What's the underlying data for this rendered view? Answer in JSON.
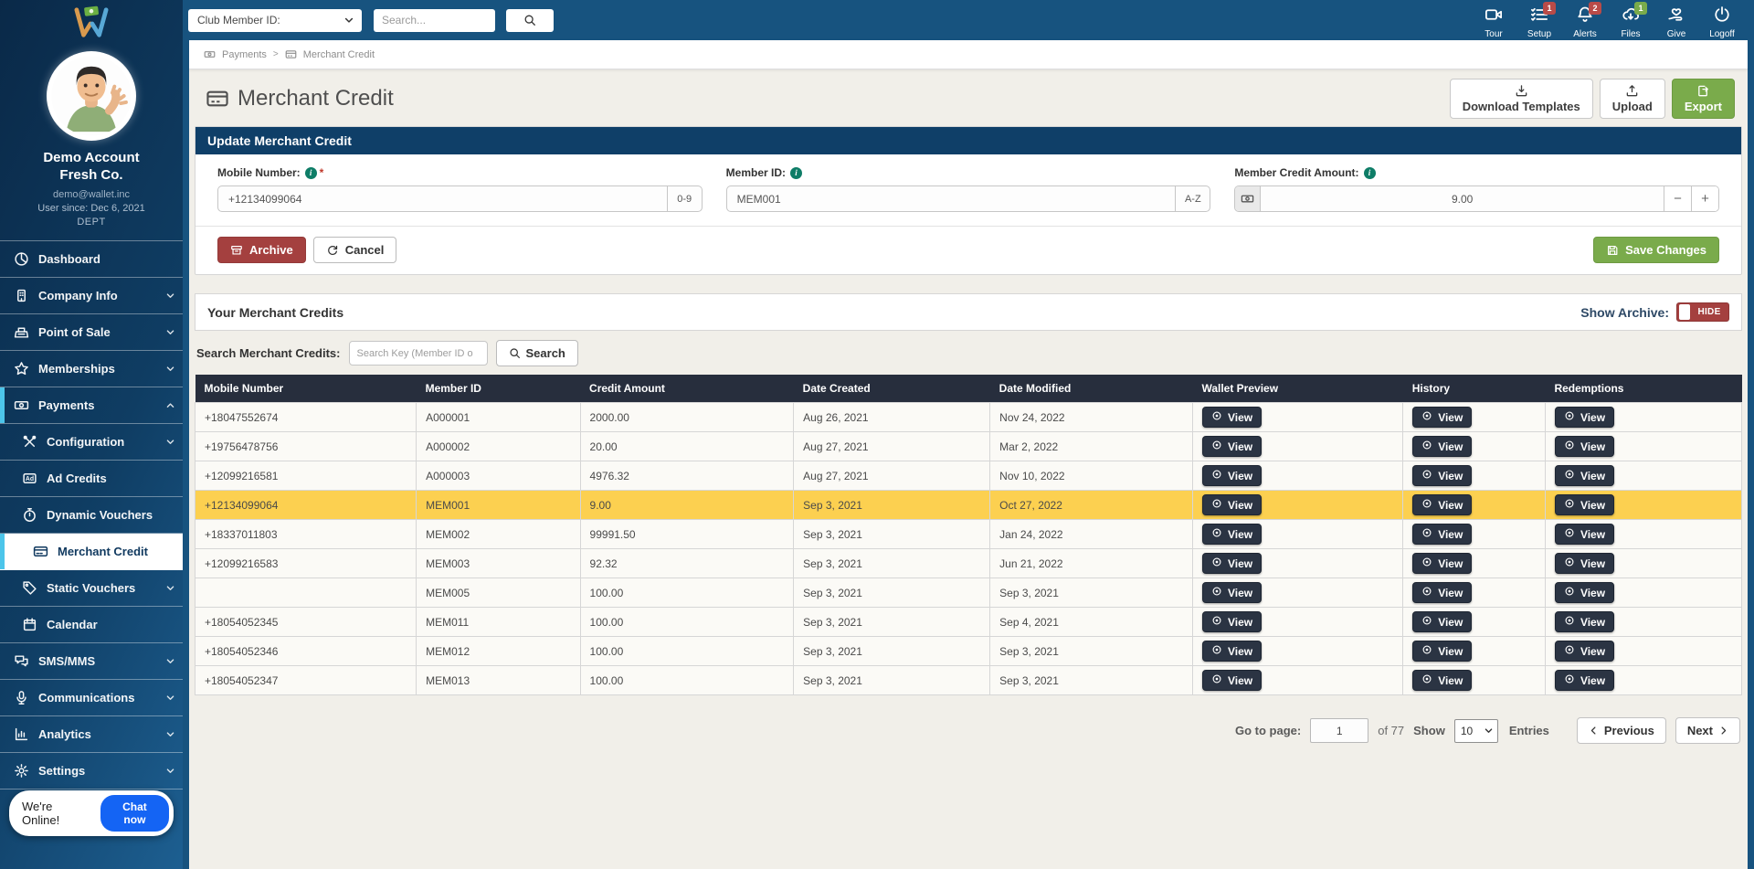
{
  "colors": {
    "topbar_blue": "#17537f",
    "panel_header_navy": "#0f3f68",
    "table_header_charcoal": "#272e3d",
    "highlight_yellow": "#fcd050",
    "accent_green": "#7aab4b",
    "danger_red": "#a4403f",
    "badge_red": "#b94b48",
    "badge_green": "#7aab4b",
    "active_cyan": "#4cc5ea",
    "chat_blue": "#1464f4"
  },
  "topbar": {
    "filter_label": "Club Member ID:",
    "search_placeholder": "Search...",
    "icons": [
      {
        "name": "tour",
        "label": "Tour"
      },
      {
        "name": "setup",
        "label": "Setup",
        "badge": "1",
        "badge_color": "#b94b48"
      },
      {
        "name": "alerts",
        "label": "Alerts",
        "badge": "2",
        "badge_color": "#b94b48"
      },
      {
        "name": "files",
        "label": "Files",
        "badge": "1",
        "badge_color": "#7aab4b"
      },
      {
        "name": "give",
        "label": "Give"
      },
      {
        "name": "logoff",
        "label": "Logoff"
      }
    ]
  },
  "sidebar": {
    "account_name": "Demo Account",
    "company_name": "Fresh Co.",
    "email": "demo@wallet.inc",
    "user_since": "User since: Dec 6, 2021",
    "dept": "DEPT",
    "menu": [
      {
        "label": "Dashboard",
        "icon": "dashboard"
      },
      {
        "label": "Company Info",
        "icon": "company",
        "chevron": "down"
      },
      {
        "label": "Point of Sale",
        "icon": "pos",
        "chevron": "down"
      },
      {
        "label": "Memberships",
        "icon": "star",
        "chevron": "down"
      },
      {
        "label": "Payments",
        "icon": "payments",
        "chevron": "up",
        "expanded": true
      },
      {
        "label": "Configuration",
        "icon": "tools",
        "chevron": "down",
        "sub": true
      },
      {
        "label": "Ad Credits",
        "icon": "ad",
        "sub": true
      },
      {
        "label": "Dynamic Vouchers",
        "icon": "stopwatch",
        "sub": true
      },
      {
        "label": "Merchant Credit",
        "icon": "card",
        "sub": true,
        "active": true
      },
      {
        "label": "Static Vouchers",
        "icon": "tag",
        "chevron": "down",
        "sub": true
      },
      {
        "label": "Calendar",
        "icon": "calendar",
        "sub": true
      },
      {
        "label": "SMS/MMS",
        "icon": "sms",
        "chevron": "down"
      },
      {
        "label": "Communications",
        "icon": "mic",
        "chevron": "down"
      },
      {
        "label": "Analytics",
        "icon": "analytics",
        "chevron": "down"
      },
      {
        "label": "Settings",
        "icon": "gear",
        "chevron": "down"
      }
    ],
    "chat": {
      "status": "We're Online!",
      "button": "Chat now"
    }
  },
  "breadcrumb": {
    "items": [
      "Payments",
      "Merchant Credit"
    ],
    "separator": ">"
  },
  "page": {
    "title": "Merchant Credit",
    "actions": {
      "download_templates": "Download Templates",
      "upload": "Upload",
      "export": "Export"
    }
  },
  "update_panel": {
    "title": "Update Merchant Credit",
    "fields": {
      "mobile": {
        "label": "Mobile Number:",
        "required": "*",
        "value": "+12134099064",
        "suffix": "0-9"
      },
      "member": {
        "label": "Member ID:",
        "value": "MEM001",
        "suffix": "A-Z"
      },
      "amount": {
        "label": "Member Credit Amount:",
        "value": "9.00",
        "minus": "−",
        "plus": "+"
      }
    },
    "buttons": {
      "archive": "Archive",
      "cancel": "Cancel",
      "save": "Save Changes"
    }
  },
  "credits_panel": {
    "title": "Your Merchant Credits",
    "show_archive_label": "Show Archive:",
    "toggle_label": "HIDE",
    "search_label": "Search Merchant Credits:",
    "search_placeholder": "Search Key (Member ID o",
    "search_button": "Search",
    "table": {
      "columns": [
        "Mobile Number",
        "Member ID",
        "Credit Amount",
        "Date Created",
        "Date Modified",
        "Wallet Preview",
        "History",
        "Redemptions"
      ],
      "view_label": "View",
      "rows": [
        {
          "mobile": "+18047552674",
          "member_id": "A000001",
          "amount": "2000.00",
          "created": "Aug 26, 2021",
          "modified": "Nov 24, 2022"
        },
        {
          "mobile": "+19756478756",
          "member_id": "A000002",
          "amount": "20.00",
          "created": "Aug 27, 2021",
          "modified": "Mar 2, 2022"
        },
        {
          "mobile": "+12099216581",
          "member_id": "A000003",
          "amount": "4976.32",
          "created": "Aug 27, 2021",
          "modified": "Nov 10, 2022"
        },
        {
          "mobile": "+12134099064",
          "member_id": "MEM001",
          "amount": "9.00",
          "created": "Sep 3, 2021",
          "modified": "Oct 27, 2022",
          "highlighted": true
        },
        {
          "mobile": "+18337011803",
          "member_id": "MEM002",
          "amount": "99991.50",
          "created": "Sep 3, 2021",
          "modified": "Jan 24, 2022"
        },
        {
          "mobile": "+12099216583",
          "member_id": "MEM003",
          "amount": "92.32",
          "created": "Sep 3, 2021",
          "modified": "Jun 21, 2022"
        },
        {
          "mobile": "",
          "member_id": "MEM005",
          "amount": "100.00",
          "created": "Sep 3, 2021",
          "modified": "Sep 3, 2021"
        },
        {
          "mobile": "+18054052345",
          "member_id": "MEM011",
          "amount": "100.00",
          "created": "Sep 3, 2021",
          "modified": "Sep 4, 2021"
        },
        {
          "mobile": "+18054052346",
          "member_id": "MEM012",
          "amount": "100.00",
          "created": "Sep 3, 2021",
          "modified": "Sep 3, 2021"
        },
        {
          "mobile": "+18054052347",
          "member_id": "MEM013",
          "amount": "100.00",
          "created": "Sep 3, 2021",
          "modified": "Sep 3, 2021"
        }
      ]
    }
  },
  "pagination": {
    "go_to_page_label": "Go to page:",
    "page_value": "1",
    "of_label": "of 77",
    "show_label": "Show",
    "page_size": "10",
    "entries_label": "Entries",
    "prev_label": "Previous",
    "next_label": "Next"
  }
}
